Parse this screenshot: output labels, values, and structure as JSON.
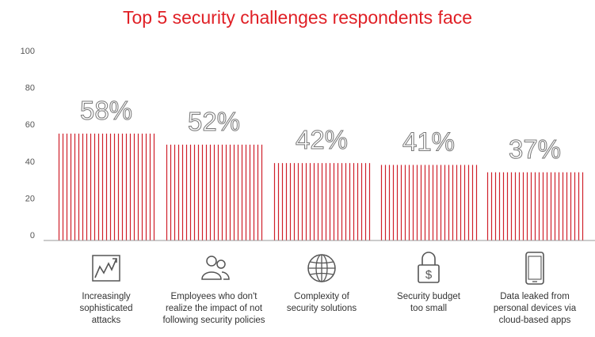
{
  "chart_data": {
    "type": "bar",
    "title": "Top 5 security challenges respondents face",
    "categories": [
      "Increasingly sophisticated attacks",
      "Employees who don't realize the impact of not following security policies",
      "Complexity of security solutions",
      "Security budget too small",
      "Data leaked from personal devices via cloud-based apps"
    ],
    "category_lines": [
      [
        "Increasingly",
        "sophisticated",
        "attacks"
      ],
      [
        "Employees who don't",
        "realize the impact of not",
        "following security policies"
      ],
      [
        "Complexity of",
        "security solutions"
      ],
      [
        "Security budget",
        "too small"
      ],
      [
        "Data leaked from",
        "personal devices via",
        "cloud-based apps"
      ]
    ],
    "values": [
      58,
      52,
      42,
      41,
      37
    ],
    "data_labels": [
      "58%",
      "52%",
      "42%",
      "41%",
      "37%"
    ],
    "yticks": [
      0,
      20,
      40,
      60,
      80,
      100
    ],
    "ylim": [
      0,
      100
    ],
    "icons": [
      "rising-chart-icon",
      "people-icon",
      "globe-icon",
      "padlock-dollar-icon",
      "smartphone-icon"
    ],
    "colors": {
      "bar": "#d0202a",
      "title": "#e02026",
      "value_label": "#777777",
      "axis": "#999999"
    },
    "grid": false
  }
}
